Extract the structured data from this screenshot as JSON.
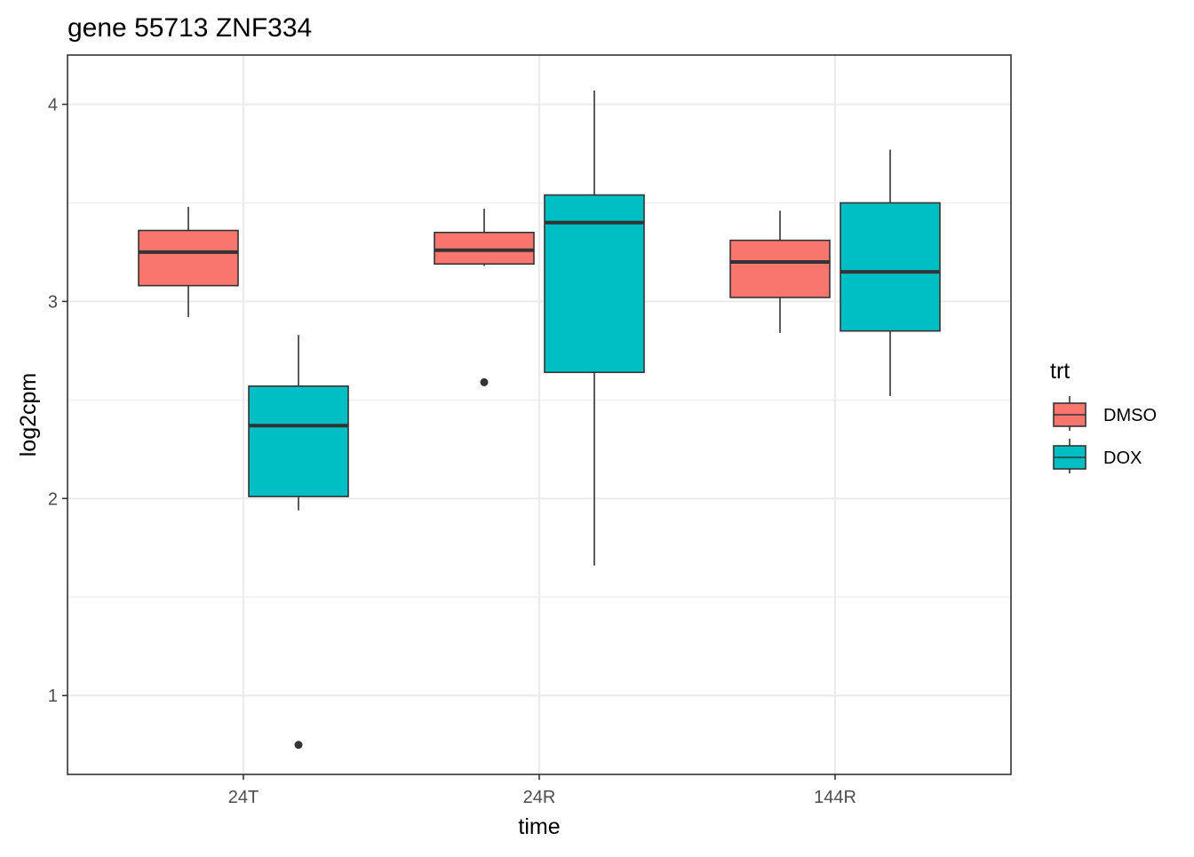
{
  "chart_data": {
    "type": "boxplot",
    "title": "gene 55713 ZNF334",
    "xlabel": "time",
    "ylabel": "log2cpm",
    "categories": [
      "24T",
      "24R",
      "144R"
    ],
    "y_ticks": [
      1,
      2,
      3,
      4
    ],
    "ylim": [
      0.6,
      4.25
    ],
    "grid": true,
    "legend": {
      "title": "trt",
      "position": "right",
      "items": [
        {
          "label": "DMSO",
          "color": "#F8766D"
        },
        {
          "label": "DOX",
          "color": "#00BFC4"
        }
      ]
    },
    "series": [
      {
        "name": "DMSO",
        "color": "#F8766D",
        "boxes": [
          {
            "category": "24T",
            "lower_whisker": 2.92,
            "q1": 3.08,
            "median": 3.25,
            "q3": 3.36,
            "upper_whisker": 3.48,
            "outliers": []
          },
          {
            "category": "24R",
            "lower_whisker": 3.18,
            "q1": 3.19,
            "median": 3.26,
            "q3": 3.35,
            "upper_whisker": 3.47,
            "outliers": [
              2.59
            ]
          },
          {
            "category": "144R",
            "lower_whisker": 2.84,
            "q1": 3.02,
            "median": 3.2,
            "q3": 3.31,
            "upper_whisker": 3.46,
            "outliers": []
          }
        ]
      },
      {
        "name": "DOX",
        "color": "#00BFC4",
        "boxes": [
          {
            "category": "24T",
            "lower_whisker": 1.94,
            "q1": 2.01,
            "median": 2.37,
            "q3": 2.57,
            "upper_whisker": 2.83,
            "outliers": [
              0.75
            ]
          },
          {
            "category": "24R",
            "lower_whisker": 1.66,
            "q1": 2.64,
            "median": 3.4,
            "q3": 3.54,
            "upper_whisker": 4.07,
            "outliers": []
          },
          {
            "category": "144R",
            "lower_whisker": 2.52,
            "q1": 2.85,
            "median": 3.15,
            "q3": 3.5,
            "upper_whisker": 3.77,
            "outliers": []
          }
        ]
      }
    ]
  }
}
